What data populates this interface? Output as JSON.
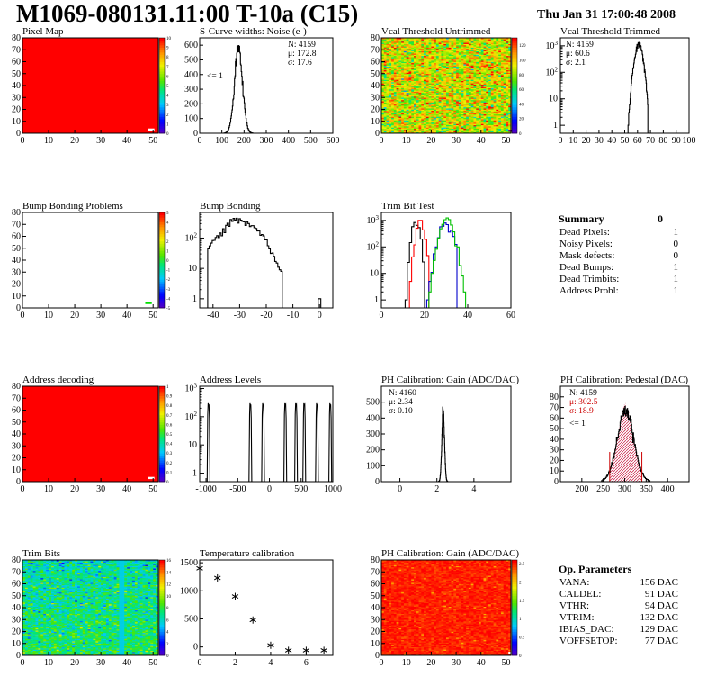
{
  "title": "M1069-080131.11:00 T-10a (C15)",
  "date": "Thu Jan 31 17:00:48 2008",
  "colors": {
    "red": "#ff0000",
    "blue": "#0000cc",
    "green": "#00c000",
    "darkred": "#cc0000",
    "hatch": "#cc6677"
  },
  "chart_data": [
    {
      "id": "pixel-map",
      "type": "heatmap",
      "title": "Pixel Map",
      "xlim": [
        0,
        52
      ],
      "ylim": [
        0,
        80
      ],
      "xticks": [
        0,
        10,
        20,
        30,
        40,
        50
      ],
      "yticks": [
        0,
        10,
        20,
        30,
        40,
        50,
        60,
        70,
        80
      ],
      "zlim": [
        0,
        10
      ],
      "zticks": [
        0,
        1,
        2,
        3,
        4,
        5,
        6,
        7,
        8,
        9,
        10
      ],
      "fill": "uniform-max",
      "note": [
        48,
        3
      ]
    },
    {
      "id": "scurve",
      "type": "line",
      "title": "S-Curve widths: Noise (e-)",
      "xlim": [
        0,
        600
      ],
      "xticks": [
        0,
        100,
        200,
        300,
        400,
        500,
        600
      ],
      "ylim": [
        0,
        650
      ],
      "yticks": [
        0,
        100,
        200,
        300,
        400,
        500,
        600
      ],
      "stats": [
        "N: 4159",
        "μ: 172.8",
        "σ: 17.6"
      ],
      "annotation": "<= 1",
      "peaks": [
        {
          "mu": 175,
          "sigma": 18,
          "amp": 590
        }
      ],
      "range": [
        100,
        290
      ],
      "bins": 100,
      "log": false
    },
    {
      "id": "vcal-untrimmed",
      "type": "heatmap",
      "title": "Vcal Threshold Untrimmed",
      "xlim": [
        0,
        52
      ],
      "ylim": [
        0,
        80
      ],
      "xticks": [
        0,
        10,
        20,
        30,
        40,
        50
      ],
      "yticks": [
        0,
        10,
        20,
        30,
        40,
        50,
        60,
        70,
        80
      ],
      "zlim": [
        0,
        130
      ],
      "zticks": [
        0,
        20,
        40,
        60,
        80,
        100,
        120
      ],
      "fill": "noise-warm",
      "note": [
        51,
        2
      ]
    },
    {
      "id": "vcal-trimmed",
      "type": "line",
      "title": "Vcal Threshold Trimmed",
      "xlim": [
        0,
        100
      ],
      "xticks": [
        0,
        10,
        20,
        30,
        40,
        50,
        60,
        70,
        80,
        90,
        100
      ],
      "log": true,
      "ylim": [
        0.5,
        2000
      ],
      "ydecades": [
        1,
        10,
        100,
        1000
      ],
      "stats": [
        "N: 4159",
        "μ: 60.6",
        "σ:  2.1"
      ],
      "peaks": [
        {
          "mu": 61,
          "sigma": 2.2,
          "amp": 1100
        }
      ],
      "range": [
        45,
        68
      ],
      "bins": 100
    },
    {
      "id": "bump-map",
      "type": "heatmap",
      "title": "Bump Bonding Problems",
      "xlim": [
        0,
        52
      ],
      "ylim": [
        0,
        80
      ],
      "xticks": [
        0,
        10,
        20,
        30,
        40,
        50
      ],
      "yticks": [
        0,
        10,
        20,
        30,
        40,
        50,
        60,
        70,
        80
      ],
      "zlim": [
        -5,
        5
      ],
      "zticks": [
        -5,
        -4,
        -3,
        -2,
        -1,
        0,
        1,
        2,
        3,
        4,
        5
      ],
      "fill": "empty",
      "note": [
        47,
        4
      ]
    },
    {
      "id": "bump-bonding",
      "type": "line",
      "title": "Bump Bonding",
      "xlim": [
        -45,
        5
      ],
      "xticks": [
        -40,
        -30,
        -20,
        -10,
        0
      ],
      "log": true,
      "ylim": [
        0.5,
        700
      ],
      "ydecades": [
        1,
        10,
        100
      ],
      "peaks": [
        {
          "mu": -30,
          "sigma": 5.5,
          "amp": 400
        }
      ],
      "range": [
        -42,
        -14
      ],
      "bins": 50,
      "extra": [
        0,
        1
      ]
    },
    {
      "id": "trim-bit-test",
      "type": "line",
      "title": "Trim Bit Test",
      "xlim": [
        0,
        60
      ],
      "xticks": [
        0,
        20,
        40,
        60
      ],
      "log": true,
      "ylim": [
        0.5,
        2000
      ],
      "ydecades": [
        1,
        10,
        100,
        1000
      ],
      "series": [
        {
          "color": "#000000",
          "mu": 16,
          "sigma": 1.3,
          "amp": 1000,
          "range": [
            9,
            20
          ]
        },
        {
          "color": "#ff0000",
          "mu": 18,
          "sigma": 1.4,
          "amp": 1000,
          "range": [
            11,
            22
          ]
        },
        {
          "color": "#0000cc",
          "mu": 30,
          "sigma": 2.3,
          "amp": 800,
          "range": [
            3,
            35
          ]
        },
        {
          "color": "#00c000",
          "mu": 30.5,
          "sigma": 2.3,
          "amp": 1000,
          "range": [
            20,
            40
          ]
        }
      ],
      "bins": 60
    },
    {
      "id": "address-decoding",
      "type": "heatmap",
      "title": "Address decoding",
      "xlim": [
        0,
        52
      ],
      "ylim": [
        0,
        80
      ],
      "xticks": [
        0,
        10,
        20,
        30,
        40,
        50
      ],
      "yticks": [
        0,
        10,
        20,
        30,
        40,
        50,
        60,
        70,
        80
      ],
      "zlim": [
        0,
        1
      ],
      "zticks": [
        0,
        0.1,
        0.2,
        0.3,
        0.4,
        0.5,
        0.6,
        0.7,
        0.8,
        0.9,
        1
      ],
      "fill": "uniform-max",
      "note": [
        48,
        3
      ]
    },
    {
      "id": "address-levels",
      "type": "line",
      "title": "Address Levels",
      "xlim": [
        -1100,
        1000
      ],
      "xticks": [
        -1000,
        -500,
        0,
        500,
        1000
      ],
      "log": true,
      "ylim": [
        0.5,
        1200
      ],
      "ydecades": [
        1,
        10,
        100,
        1000
      ],
      "spikes": [
        -960,
        -300,
        -100,
        250,
        420,
        550,
        750,
        960
      ],
      "amp": 300
    },
    {
      "id": "ph-gain",
      "type": "line",
      "title": "PH Calibration: Gain (ADC/DAC)",
      "xlim": [
        -1,
        6
      ],
      "xticks": [
        0,
        2,
        4
      ],
      "ylim": [
        0,
        600
      ],
      "yticks": [
        0,
        100,
        200,
        300,
        400,
        500
      ],
      "stats": [
        "N: 4160",
        "μ: 2.34",
        "σ: 0.10"
      ],
      "log": false,
      "peaks": [
        {
          "mu": 2.34,
          "sigma": 0.07,
          "amp": 450
        }
      ],
      "range": [
        2.0,
        2.7
      ],
      "bins": 140
    },
    {
      "id": "ph-pedestal",
      "type": "line",
      "title": "PH Calibration: Pedestal (DAC)",
      "xlim": [
        150,
        450
      ],
      "xticks": [
        200,
        250,
        300,
        350,
        400
      ],
      "ylim": [
        0,
        90
      ],
      "yticks": [
        0,
        10,
        20,
        30,
        40,
        50,
        60,
        70,
        80
      ],
      "stats": [
        "N: 4159",
        "μ: 302.5",
        "σ: 18.9"
      ],
      "annotation": "<= 1",
      "log": false,
      "peaks": [
        {
          "mu": 302,
          "sigma": 19,
          "amp": 68
        }
      ],
      "range": [
        240,
        370
      ],
      "bins": 150,
      "cuts": [
        265,
        340
      ]
    },
    {
      "id": "trim-bits",
      "type": "heatmap",
      "title": "Trim Bits",
      "xlim": [
        0,
        52
      ],
      "ylim": [
        0,
        80
      ],
      "xticks": [
        0,
        10,
        20,
        30,
        40,
        50
      ],
      "yticks": [
        0,
        10,
        20,
        30,
        40,
        50,
        60,
        70,
        80
      ],
      "zlim": [
        0,
        16
      ],
      "zticks": [
        0,
        2,
        4,
        6,
        8,
        10,
        12,
        14,
        16
      ],
      "fill": "noise-cool"
    },
    {
      "id": "temperature",
      "type": "scatter",
      "title": "Temperature calibration",
      "xlim": [
        0,
        7.5
      ],
      "xticks": [
        0,
        2,
        4,
        6
      ],
      "ylim": [
        -150,
        1550
      ],
      "yticks": [
        0,
        500,
        1000,
        1500
      ],
      "x": [
        0,
        1,
        2,
        3,
        4,
        5,
        6,
        7
      ],
      "y": [
        1400,
        1230,
        900,
        480,
        30,
        -60,
        -60,
        -60
      ]
    },
    {
      "id": "ph-gain-map",
      "type": "heatmap",
      "title": "PH Calibration: Gain (ADC/DAC)",
      "xlim": [
        0,
        52
      ],
      "ylim": [
        0,
        80
      ],
      "xticks": [
        0,
        10,
        20,
        30,
        40,
        50
      ],
      "yticks": [
        0,
        10,
        20,
        30,
        40,
        50,
        60,
        70,
        80
      ],
      "zlim": [
        0,
        2.6
      ],
      "zticks": [
        0,
        0.5,
        1,
        1.5,
        2,
        2.5
      ],
      "fill": "noise-red",
      "note": [
        51,
        2
      ]
    }
  ],
  "summary": {
    "title": "Summary",
    "total": "0",
    "rows": [
      [
        "Dead Pixels:",
        "1"
      ],
      [
        "Noisy Pixels:",
        "0"
      ],
      [
        "Mask defects:",
        "0"
      ],
      [
        "Dead Bumps:",
        "1"
      ],
      [
        "Dead Trimbits:",
        "1"
      ],
      [
        "Address Probl:",
        "1"
      ]
    ]
  },
  "op_params": {
    "title": "Op. Parameters",
    "rows": [
      [
        "VANA:",
        "156 DAC"
      ],
      [
        "CALDEL:",
        "91 DAC"
      ],
      [
        "VTHR:",
        "94 DAC"
      ],
      [
        "VTRIM:",
        "132 DAC"
      ],
      [
        "IBIAS_DAC:",
        "129 DAC"
      ],
      [
        "VOFFSETOP:",
        "77 DAC"
      ]
    ]
  }
}
